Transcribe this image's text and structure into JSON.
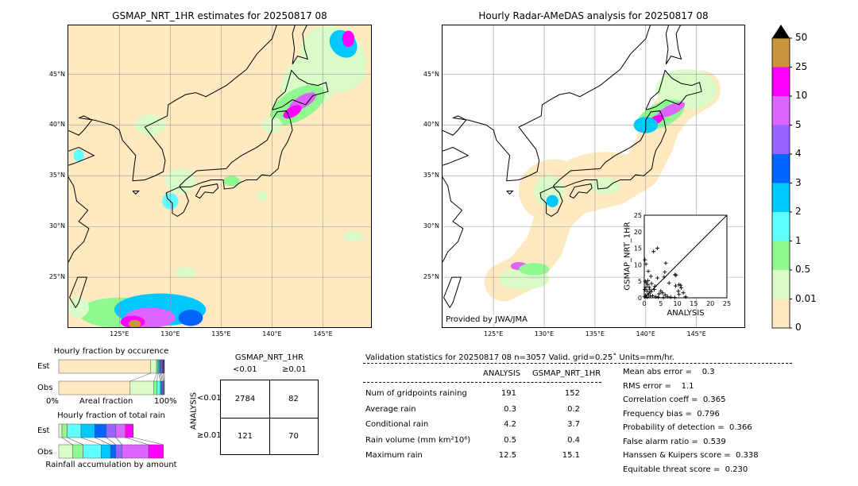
{
  "left_map": {
    "title": "GSMAP_NRT_1HR estimates for 20250817 08",
    "lon_labels": [
      "125°E",
      "130°E",
      "135°E",
      "140°E",
      "145°E"
    ],
    "lat_labels": [
      "45°N",
      "40°N",
      "35°N",
      "30°N",
      "25°N"
    ]
  },
  "right_map": {
    "title": "Hourly Radar-AMeDAS analysis for 20250817 08",
    "lon_labels": [
      "125°E",
      "130°E",
      "135°E",
      "140°E",
      "145°E"
    ],
    "lat_labels": [
      "45°N",
      "40°N",
      "35°N",
      "30°N",
      "25°N"
    ],
    "credit": "Provided by JWA/JMA"
  },
  "colorbar": {
    "levels": [
      "0",
      "0.01",
      "0.5",
      "1",
      "2",
      "3",
      "4",
      "5",
      "10",
      "25",
      "50"
    ],
    "colors": [
      "#fee9c0",
      "#d9fcc8",
      "#90f890",
      "#60ffff",
      "#00c8ff",
      "#0064ff",
      "#9664ff",
      "#dc64ff",
      "#ff00ff",
      "#c8963c"
    ],
    "extend": "max"
  },
  "scatter": {
    "type": "scatter",
    "xlabel": "ANALYSIS",
    "ylabel": "GSMAP_NRT_1HR",
    "xlim": [
      0,
      25
    ],
    "ylim": [
      0,
      25
    ],
    "ticks": [
      "0",
      "5",
      "10",
      "15",
      "20",
      "25"
    ],
    "points": [
      [
        0.2,
        11.5
      ],
      [
        0.5,
        10.2
      ],
      [
        2.8,
        14
      ],
      [
        4,
        15
      ],
      [
        6.5,
        10.5
      ],
      [
        6.2,
        7.8
      ],
      [
        1.2,
        8
      ],
      [
        2,
        6.5
      ],
      [
        4,
        6
      ],
      [
        9.3,
        7
      ],
      [
        9.6,
        6.8
      ],
      [
        6,
        6.3
      ],
      [
        7.5,
        4.5
      ],
      [
        9.5,
        3.6
      ],
      [
        10.5,
        4
      ],
      [
        11,
        3.8
      ],
      [
        11.2,
        3
      ],
      [
        10.3,
        2
      ],
      [
        11.8,
        1.5
      ],
      [
        12.5,
        0.3
      ],
      [
        10.5,
        1
      ],
      [
        9.2,
        0.1
      ],
      [
        5,
        2.1
      ],
      [
        5.5,
        1.5
      ],
      [
        6.3,
        0.9
      ],
      [
        4.5,
        1.2
      ],
      [
        3,
        2.5
      ],
      [
        3.2,
        3.5
      ],
      [
        0.3,
        5
      ],
      [
        0.6,
        4.5
      ],
      [
        1,
        4
      ],
      [
        1.5,
        3.2
      ],
      [
        0.2,
        2.5
      ],
      [
        0.8,
        2
      ],
      [
        1.3,
        1.2
      ],
      [
        2,
        1.8
      ],
      [
        0.4,
        0.8
      ],
      [
        1.8,
        0.5
      ],
      [
        2.5,
        0.6
      ],
      [
        3.5,
        0.3
      ],
      [
        0.1,
        0.3
      ],
      [
        0.9,
        0.2
      ],
      [
        4.2,
        0.2
      ],
      [
        5.8,
        0.1
      ],
      [
        7,
        0.4
      ],
      [
        8,
        0.2
      ],
      [
        0.5,
        3.2
      ],
      [
        1.1,
        5.2
      ],
      [
        2.2,
        4.3
      ],
      [
        1.6,
        2.6
      ]
    ]
  },
  "occurrence": {
    "title": "Hourly fraction by occurence",
    "rows": [
      "Est",
      "Obs"
    ],
    "xlabel": "Areal fraction",
    "x_min_label": "0%",
    "x_max_label": "100%",
    "est": [
      87,
      5.5,
      1,
      1,
      1,
      1,
      1,
      1.5,
      1
    ],
    "obs": [
      67.5,
      22.5,
      3,
      3,
      1,
      1,
      1,
      0.5,
      0.5
    ]
  },
  "rain_fraction": {
    "title": "Hourly fraction of total rain",
    "rows": [
      "Est",
      "Obs"
    ],
    "xlabel": "Rainfall accumulation by amount",
    "est": [
      3,
      5,
      13,
      13,
      11,
      9,
      9,
      7.5
    ],
    "obs": [
      13,
      10,
      17,
      9,
      5,
      6,
      25,
      14
    ]
  },
  "contingency": {
    "col_title": "GSMAP_NRT_1HR",
    "row_title": "ANALYSIS",
    "col_labels": [
      "<0.01",
      "≥0.01"
    ],
    "row_labels": [
      "<0.01",
      "≥0.01"
    ],
    "cells": [
      [
        "2784",
        "82"
      ],
      [
        "121",
        "70"
      ]
    ]
  },
  "stats": {
    "header": "Validation statistics for 20250817 08  n=3057 Valid. grid=0.25˚ Units=mm/hr.",
    "col_analysis": "ANALYSIS",
    "col_gsmap": "GSMAP_NRT_1HR",
    "rows": [
      {
        "label": "Num of gridpoints raining",
        "analysis": "191",
        "gsmap": "152"
      },
      {
        "label": "Average rain",
        "analysis": "0.3",
        "gsmap": "0.2"
      },
      {
        "label": "Conditional rain",
        "analysis": "4.2",
        "gsmap": "3.7"
      },
      {
        "label": "Rain volume (mm km²10⁶)",
        "analysis": "0.5",
        "gsmap": "0.4"
      },
      {
        "label": "Maximum rain",
        "analysis": "12.5",
        "gsmap": "15.1"
      }
    ],
    "scores": [
      "Mean abs error =    0.3",
      "RMS error =    1.1",
      "Correlation coeff =  0.365",
      "Frequency bias =  0.796",
      "Probability of detection =  0.366",
      "False alarm ratio =  0.539",
      "Hanssen & Kuipers score =  0.338",
      "Equitable threat score =  0.230"
    ]
  }
}
